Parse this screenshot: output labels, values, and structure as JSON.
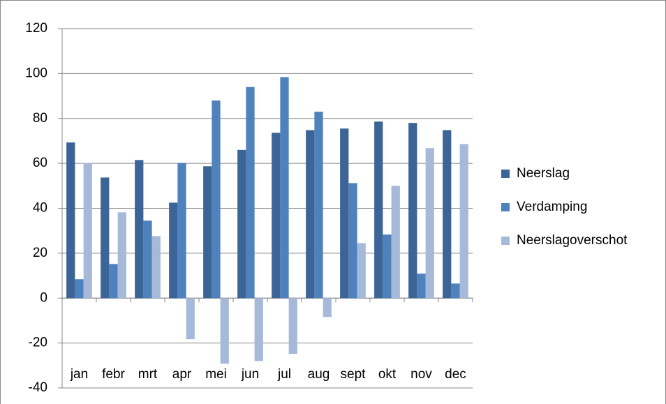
{
  "chart_data": {
    "type": "bar",
    "categories": [
      "jan",
      "febr",
      "mrt",
      "apr",
      "mei",
      "jun",
      "jul",
      "aug",
      "sept",
      "okt",
      "nov",
      "dec"
    ],
    "series": [
      {
        "name": "Neerslag",
        "color": "#3c6496",
        "values": [
          69.3,
          53.7,
          61.5,
          42.5,
          58.7,
          66,
          73.6,
          74.8,
          75.5,
          78.6,
          78,
          74.8
        ]
      },
      {
        "name": "Verdamping",
        "color": "#4f81bd",
        "values": [
          8.4,
          15.2,
          34.5,
          60.2,
          88,
          94,
          98.4,
          83,
          51.2,
          28.3,
          10.9,
          6.5
        ]
      },
      {
        "name": "Neerslagoverschot",
        "color": "#a7b9d9",
        "values": [
          60.2,
          38.2,
          27.6,
          -18.3,
          -29.2,
          -28,
          -24.8,
          -8.4,
          24.5,
          50,
          66.8,
          68.6
        ]
      }
    ],
    "ylim": [
      -40,
      120
    ],
    "yticks": [
      -40,
      -20,
      0,
      20,
      40,
      60,
      80,
      100,
      120
    ],
    "grid": true,
    "legend": "right"
  }
}
